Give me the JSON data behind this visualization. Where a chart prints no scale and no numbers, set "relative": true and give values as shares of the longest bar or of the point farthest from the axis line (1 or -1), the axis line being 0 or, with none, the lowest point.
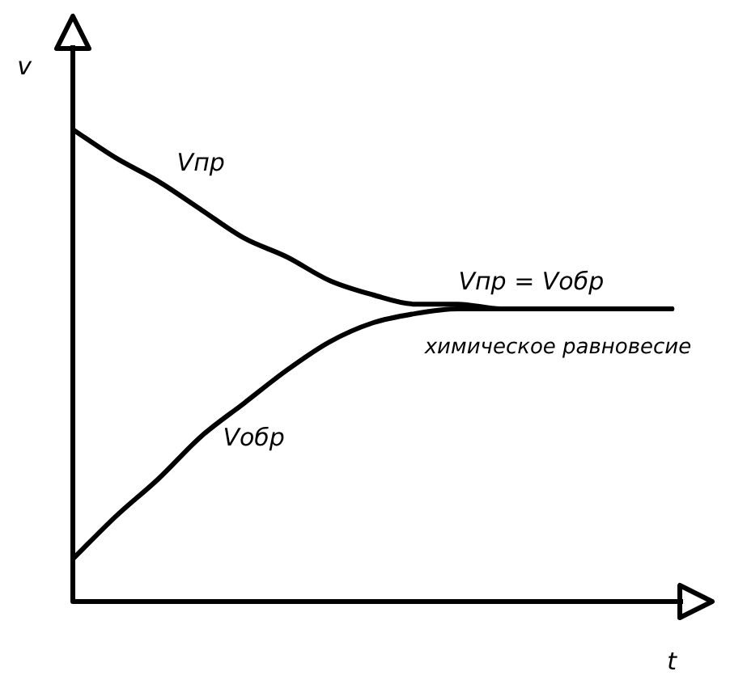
{
  "chart_data": {
    "type": "line",
    "relative": true,
    "xlabel": "t",
    "ylabel": "v",
    "legend": false,
    "marker": "none",
    "line_style": "solid",
    "categories": [
      null,
      null,
      null,
      null,
      null,
      null,
      null,
      null,
      null,
      null,
      null,
      null,
      null,
      null,
      null
    ],
    "series": [
      {
        "name": "Vпр",
        "color": "#000000",
        "values": [
          1,
          0.94,
          0.89,
          0.83,
          0.77,
          0.73,
          0.68,
          0.65,
          0.63,
          0.63,
          0.62,
          0.62,
          0.62,
          0.62,
          0.62
        ]
      },
      {
        "name": "Vобр",
        "color": "#000000",
        "values": [
          0.09,
          0.18,
          0.26,
          0.35,
          0.42,
          0.49,
          0.55,
          0.59,
          0.61,
          0.62,
          0.62,
          0.62,
          0.62,
          0.62,
          0.62
        ]
      }
    ],
    "annotations": [
      "Vпр = Vобр",
      "химическое равновесие"
    ]
  }
}
